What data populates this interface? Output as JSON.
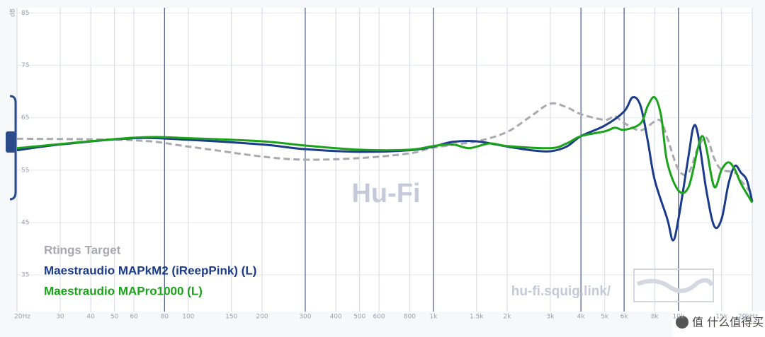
{
  "chart_data": {
    "type": "line",
    "y_label": "dB",
    "xscale": "log",
    "xlim": [
      20,
      20000
    ],
    "ylim": [
      28,
      86
    ],
    "yticks": [
      35,
      45,
      55,
      65,
      75,
      85
    ],
    "xticks": [
      {
        "value": 20,
        "label": "20Hz"
      },
      30,
      40,
      50,
      60,
      80,
      100,
      150,
      200,
      300,
      400,
      500,
      600,
      800,
      {
        "value": 1000,
        "label": "1k"
      },
      {
        "value": 1500,
        "label": "1.5k"
      },
      {
        "value": 2000,
        "label": "2k"
      },
      {
        "value": 3000,
        "label": "3k"
      },
      {
        "value": 4000,
        "label": "4k"
      },
      {
        "value": 5000,
        "label": "5k"
      },
      {
        "value": 6000,
        "label": "6k"
      },
      {
        "value": 8000,
        "label": "8k"
      },
      {
        "value": 10000,
        "label": "10k"
      },
      {
        "value": 15000,
        "label": "15k"
      },
      {
        "value": 20000,
        "label": "20kHz"
      }
    ],
    "emphasized_xticks": [
      80,
      300,
      1000,
      4000,
      6000,
      10000
    ],
    "grid": true,
    "legend": "bottom-left",
    "watermarks": [
      "Hu-Fi",
      "hu-fi.squig.link/",
      "值 什么值得买"
    ],
    "series": [
      {
        "name": "Rtings Target",
        "color": "#a9a9b0",
        "dashed": true,
        "x": [
          20,
          60,
          100,
          200,
          300,
          500,
          800,
          1000,
          1500,
          2000,
          2500,
          3000,
          3500,
          4000,
          5000,
          5500,
          6000,
          7000,
          8000,
          8500,
          9000,
          10000,
          11000,
          12000,
          13000,
          14000,
          15000,
          17000,
          18000,
          20000
        ],
        "values": [
          61,
          60.7,
          59.5,
          57.6,
          57,
          57.3,
          58.2,
          59.3,
          60.5,
          62.3,
          65.3,
          67.7,
          67,
          65.7,
          64.6,
          65.3,
          64,
          62.6,
          64.3,
          64.3,
          61.2,
          55.1,
          54.5,
          59.2,
          61.2,
          57.2,
          55.1,
          54.5,
          53,
          50.4
        ]
      },
      {
        "name": "Maestraudio MAPkM2 (iReepPink) (L)",
        "color": "#1a3a8a",
        "x": [
          20,
          30,
          60,
          100,
          200,
          300,
          500,
          800,
          1000,
          1200,
          1500,
          2000,
          2500,
          3000,
          3500,
          4000,
          5000,
          6000,
          6500,
          7000,
          7500,
          8000,
          9000,
          9500,
          10000,
          11000,
          11500,
          12000,
          13000,
          14000,
          15000,
          16000,
          17000,
          18000,
          19000,
          20000
        ],
        "values": [
          58.8,
          59.9,
          61.1,
          60.8,
          59.9,
          59,
          58.5,
          58.8,
          59.5,
          60.4,
          60.5,
          59.5,
          58.8,
          58.6,
          59.5,
          61.5,
          63.5,
          66.2,
          68.9,
          67.3,
          60.5,
          53.1,
          45.7,
          41.6,
          45.7,
          57.8,
          63.2,
          61.9,
          51.1,
          44.3,
          45.7,
          52.4,
          55.8,
          54.5,
          53.1,
          49
        ]
      },
      {
        "name": "Maestraudio MAPro1000 (L)",
        "color": "#1aa31a",
        "x": [
          20,
          60,
          100,
          200,
          300,
          500,
          800,
          1000,
          1200,
          1400,
          1700,
          2000,
          3000,
          3500,
          4000,
          5000,
          5500,
          6000,
          7000,
          7500,
          8000,
          8500,
          9000,
          10000,
          11000,
          12000,
          12500,
          13000,
          14000,
          15000,
          16000,
          17000,
          18000,
          20000
        ],
        "values": [
          59.2,
          61.2,
          61.1,
          60.5,
          59.7,
          58.9,
          58.9,
          59.6,
          59.9,
          59.2,
          60.1,
          59.6,
          59.2,
          60.1,
          61.5,
          62.4,
          63.1,
          62.7,
          63.9,
          67.3,
          68.9,
          65.3,
          56.5,
          51.1,
          51.8,
          59.2,
          61.5,
          59.2,
          51.8,
          55.1,
          56.5,
          55.1,
          52.4,
          48.8
        ]
      }
    ]
  }
}
